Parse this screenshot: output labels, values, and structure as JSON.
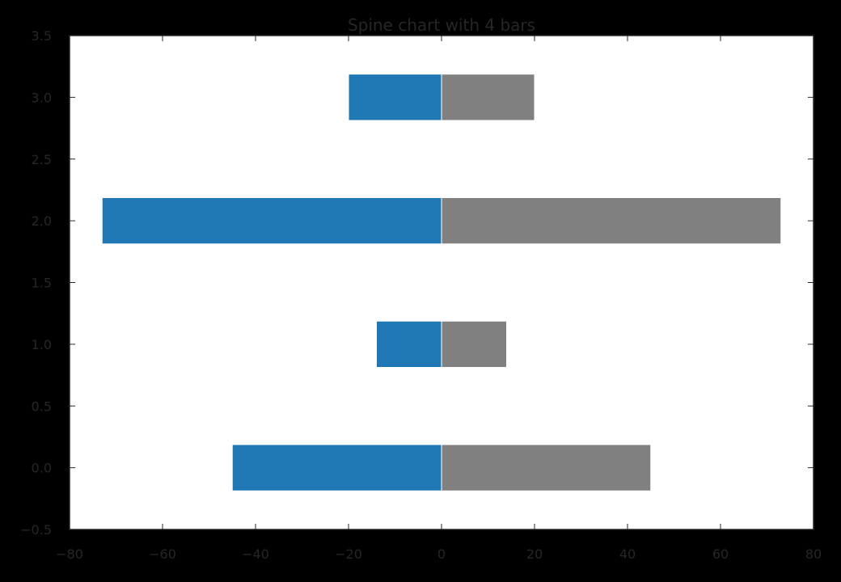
{
  "chart_data": {
    "type": "bar",
    "orientation": "horizontal",
    "title": "Spine chart with 4 bars",
    "xlabel": "",
    "ylabel": "",
    "xlim": [
      -80,
      80
    ],
    "ylim": [
      -0.5,
      3.5
    ],
    "x_ticks": [
      -80,
      -60,
      -40,
      -20,
      0,
      20,
      40,
      60,
      80
    ],
    "x_tick_labels": [
      "−80",
      "−60",
      "−40",
      "−20",
      "0",
      "20",
      "40",
      "60",
      "80"
    ],
    "y_ticks": [
      -0.5,
      0.0,
      0.5,
      1.0,
      1.5,
      2.0,
      2.5,
      3.0,
      3.5
    ],
    "y_tick_labels": [
      "−0.5",
      "0.0",
      "0.5",
      "1.0",
      "1.5",
      "2.0",
      "2.5",
      "3.0",
      "3.5"
    ],
    "categories": [
      0,
      1,
      2,
      3
    ],
    "bar_height": 0.375,
    "grid": false,
    "series": [
      {
        "color": "#1f77b4",
        "values": [
          -45,
          -14,
          -73,
          -20
        ]
      },
      {
        "color": "#808080",
        "values": [
          45,
          14,
          73,
          20
        ]
      }
    ]
  },
  "colors": {
    "background": "#000000",
    "plot_area": "#ffffff",
    "text": "#262626",
    "axis": "#262626",
    "bar_edge": "#ffffff"
  }
}
